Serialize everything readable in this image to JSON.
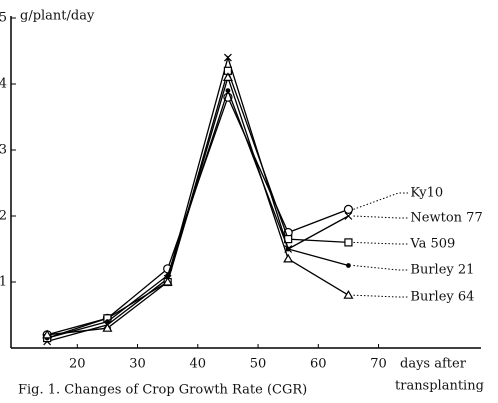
{
  "chart_data": {
    "type": "line",
    "title": "Fig. 1.  Changes of Crop Growth Rate (CGR)",
    "y_label": "g/plant/day",
    "x_label": [
      "days after",
      "transplanting"
    ],
    "x": [
      15,
      25,
      35,
      45,
      55,
      65
    ],
    "series": [
      {
        "name": "Ky10",
        "color": "#000000",
        "marker": "circle",
        "values": [
          0.2,
          0.45,
          1.2,
          3.8,
          1.75,
          2.1
        ]
      },
      {
        "name": "Newton 77",
        "color": "#000000",
        "marker": "cross",
        "values": [
          0.1,
          0.35,
          1.05,
          4.4,
          1.5,
          2.0
        ]
      },
      {
        "name": "Va 509",
        "color": "#000000",
        "marker": "square",
        "values": [
          0.15,
          0.45,
          1.0,
          4.2,
          1.65,
          1.6
        ]
      },
      {
        "name": "Burley 21",
        "color": "#000000",
        "marker": "dot",
        "values": [
          0.15,
          0.4,
          1.1,
          3.9,
          1.5,
          1.25
        ]
      },
      {
        "name": "Burley 64",
        "color": "#000000",
        "marker": "triangle",
        "values": [
          0.2,
          0.3,
          1.0,
          4.1,
          1.35,
          0.8
        ]
      }
    ],
    "xlim": [
      9,
      87
    ],
    "xticks": [
      20,
      30,
      40,
      50,
      60,
      70
    ],
    "ylim": [
      0,
      5
    ],
    "yticks": [
      1,
      2,
      3,
      4,
      5
    ],
    "grid": false
  }
}
